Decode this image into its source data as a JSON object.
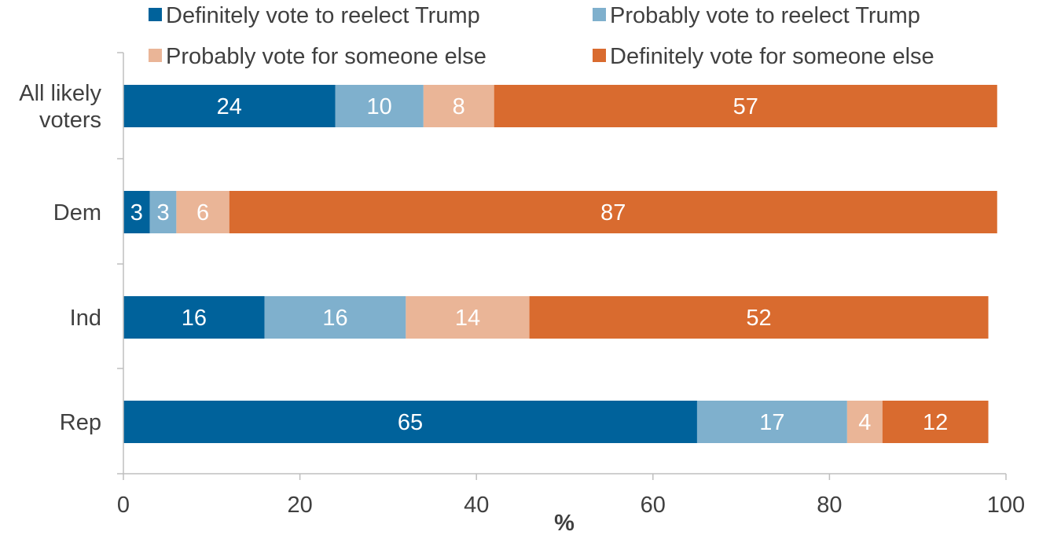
{
  "chart_data": {
    "type": "bar",
    "orientation": "horizontal",
    "stacked": true,
    "categories": [
      "All likely voters",
      "Dem",
      "Ind",
      "Rep"
    ],
    "category_lines": [
      [
        "All likely",
        "voters"
      ],
      [
        "Dem"
      ],
      [
        "Ind"
      ],
      [
        "Rep"
      ]
    ],
    "series": [
      {
        "name": "Definitely vote to reelect Trump",
        "color": "#00629b",
        "values": [
          24,
          3,
          16,
          65
        ]
      },
      {
        "name": "Probably vote to reelect Trump",
        "color": "#7fb0cd",
        "values": [
          10,
          3,
          16,
          17
        ]
      },
      {
        "name": "Probably vote for someone else",
        "color": "#eab597",
        "values": [
          8,
          6,
          14,
          4
        ]
      },
      {
        "name": "Definitely vote for someone else",
        "color": "#d96b2f",
        "values": [
          57,
          87,
          52,
          12
        ]
      }
    ],
    "xlabel": "%",
    "ylabel": "",
    "xlim": [
      0,
      100
    ],
    "xticks": [
      0,
      20,
      40,
      60,
      80,
      100
    ],
    "legend_position": "top",
    "grid": false,
    "data_labels": true
  }
}
